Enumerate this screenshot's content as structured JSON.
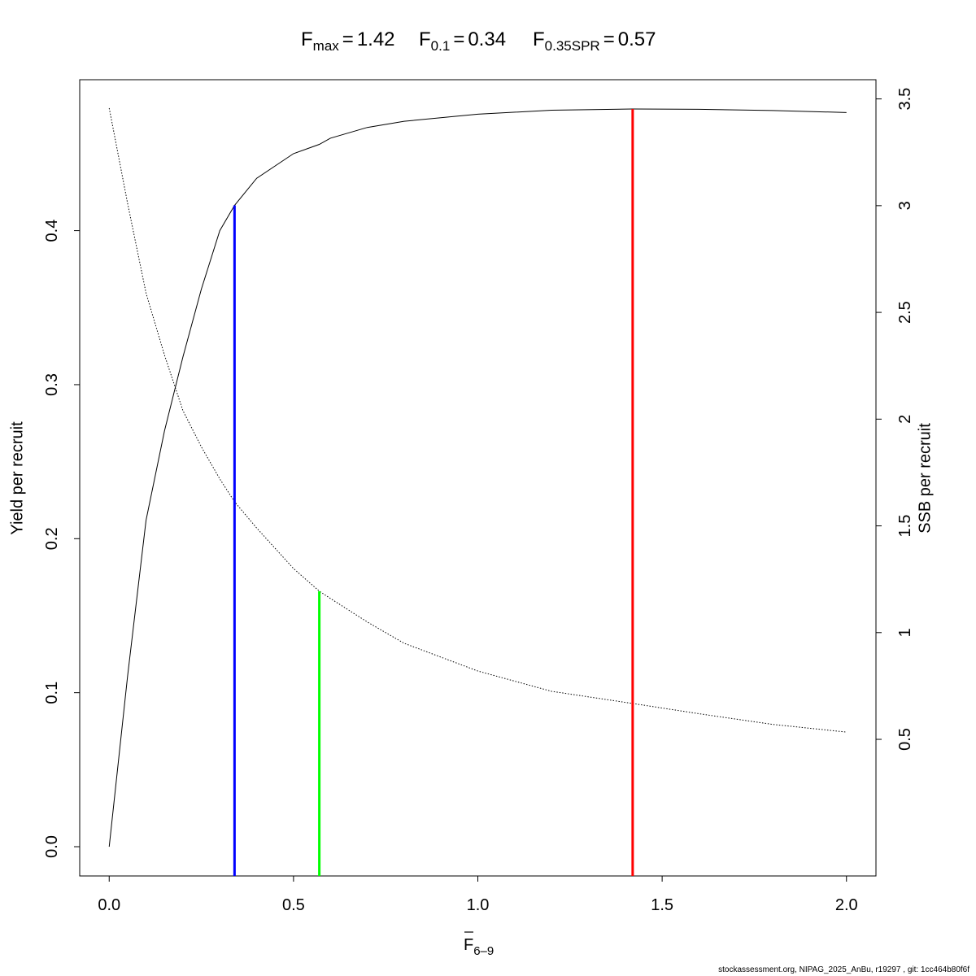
{
  "chart_data": {
    "type": "line",
    "reference_lines": [
      {
        "symbol": "F",
        "subscript": "max",
        "equals": "=",
        "x": 1.42,
        "y": 0.479,
        "axis": "y",
        "color": "#ff0000"
      },
      {
        "symbol": "F",
        "subscript": "0.1",
        "equals": "=",
        "x": 0.34,
        "y": 0.4164,
        "axis": "y",
        "color": "#0000ff"
      },
      {
        "symbol": "F",
        "subscript": "0.35SPR",
        "equals": "=",
        "x": 0.57,
        "y": 1.194,
        "axis": "y2",
        "color": "#00ff00"
      }
    ],
    "xlabel": {
      "text": "F",
      "subscript": "6–9"
    },
    "ylabel": "Yield per recruit",
    "y2label": "SSB per recruit",
    "footer": "stockassessment.org, NIPAG_2025_AnBu, r19297 , git: 1cc464b80f6f",
    "x": [
      0,
      0.05,
      0.1,
      0.15,
      0.2,
      0.25,
      0.3,
      0.34,
      0.4,
      0.5,
      0.57,
      0.6,
      0.7,
      0.8,
      1.0,
      1.2,
      1.42,
      1.6,
      1.8,
      2.0
    ],
    "series": [
      {
        "color": "#000000",
        "dash": "solid",
        "axis": "y",
        "values": [
          0,
          0.111,
          0.212,
          0.27,
          0.318,
          0.362,
          0.4,
          0.4164,
          0.434,
          0.45,
          0.456,
          0.46,
          0.467,
          0.471,
          0.4756,
          0.4782,
          0.479,
          0.4788,
          0.478,
          0.4767
        ]
      },
      {
        "color": "#000000",
        "dash": "dotted",
        "axis": "y2",
        "values": [
          3.457,
          3.01,
          2.59,
          2.3,
          2.04,
          1.87,
          1.72,
          1.613,
          1.49,
          1.3,
          1.194,
          1.16,
          1.05,
          0.95,
          0.82,
          0.725,
          0.668,
          0.62,
          0.57,
          0.534
        ]
      }
    ],
    "xlim": [
      -0.08,
      2.08
    ],
    "xticks": [
      {
        "value": 0,
        "label": "0.0"
      },
      0.5,
      {
        "value": 1,
        "label": "1.0"
      },
      1.5,
      {
        "value": 2,
        "label": "2.0"
      }
    ],
    "ylim": [
      -0.019,
      0.498
    ],
    "yticks": [
      {
        "value": 0,
        "label": "0.0"
      },
      0.1,
      0.2,
      0.3,
      0.4
    ],
    "y2lim": [
      -0.14,
      3.59
    ],
    "y2ticks": [
      0.5,
      1,
      1.5,
      2,
      2.5,
      3,
      3.5
    ]
  }
}
